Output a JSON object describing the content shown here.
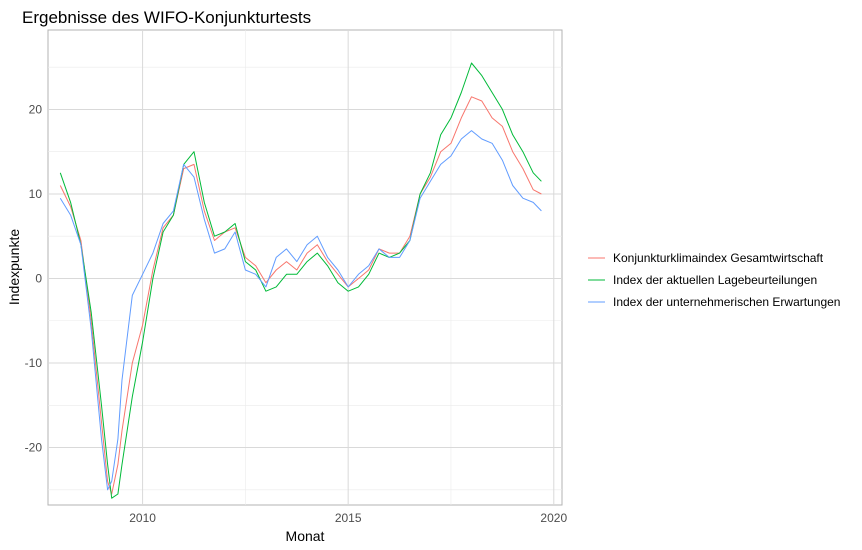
{
  "chart_data": {
    "type": "line",
    "title": "Ergebnisse des WIFO-Konjunkturtests",
    "xlabel": "Monat",
    "ylabel": "Indexpunkte",
    "xlim": [
      2007.7,
      2020.2
    ],
    "ylim": [
      -26.8,
      29.4
    ],
    "x_ticks": [
      2010,
      2015,
      2020
    ],
    "x_tick_labels": [
      "2010",
      "2015",
      "2020"
    ],
    "y_ticks": [
      -20,
      -10,
      0,
      10,
      20
    ],
    "y_tick_labels": [
      "-20",
      "-10",
      "0",
      "10",
      "20"
    ],
    "grid": true,
    "legend_position": "right",
    "x": [
      2008.0,
      2008.25,
      2008.5,
      2008.75,
      2009.0,
      2009.15,
      2009.25,
      2009.4,
      2009.5,
      2009.75,
      2010.0,
      2010.25,
      2010.5,
      2010.75,
      2011.0,
      2011.25,
      2011.5,
      2011.75,
      2012.0,
      2012.25,
      2012.5,
      2012.75,
      2013.0,
      2013.25,
      2013.5,
      2013.75,
      2014.0,
      2014.25,
      2014.5,
      2014.75,
      2015.0,
      2015.25,
      2015.5,
      2015.75,
      2016.0,
      2016.25,
      2016.5,
      2016.75,
      2017.0,
      2017.25,
      2017.5,
      2017.75,
      2018.0,
      2018.25,
      2018.5,
      2018.75,
      2019.0,
      2019.25,
      2019.5,
      2019.7
    ],
    "series": [
      {
        "name": "Konjunkturklimaindex Gesamtwirtschaft",
        "color": "#F8766D",
        "values": [
          11.0,
          8.5,
          4.5,
          -5.0,
          -17.0,
          -24.0,
          -25.5,
          -22.0,
          -18.0,
          -10.0,
          -5.5,
          1.0,
          6.0,
          7.5,
          13.0,
          13.5,
          8.0,
          4.5,
          5.5,
          6.0,
          2.5,
          1.5,
          -0.5,
          1.0,
          2.0,
          1.0,
          3.0,
          4.0,
          2.0,
          0.5,
          -1.0,
          0.0,
          1.0,
          3.5,
          3.0,
          3.0,
          5.0,
          10.0,
          12.0,
          15.0,
          16.0,
          19.0,
          21.5,
          21.0,
          19.0,
          18.0,
          15.0,
          13.0,
          10.5,
          10.0
        ]
      },
      {
        "name": "Index der aktuellen Lagebeurteilungen",
        "color": "#00BA38",
        "values": [
          12.5,
          9.0,
          4.0,
          -4.0,
          -15.0,
          -22.0,
          -26.0,
          -25.5,
          -22.0,
          -14.0,
          -7.5,
          0.0,
          5.5,
          7.5,
          13.5,
          15.0,
          9.0,
          5.0,
          5.5,
          6.5,
          2.0,
          1.0,
          -1.5,
          -1.0,
          0.5,
          0.5,
          2.0,
          3.0,
          1.5,
          -0.5,
          -1.5,
          -1.0,
          0.5,
          3.0,
          2.5,
          3.0,
          4.5,
          10.0,
          12.5,
          17.0,
          19.0,
          22.0,
          25.5,
          24.0,
          22.0,
          20.0,
          17.0,
          15.0,
          12.5,
          11.5
        ]
      },
      {
        "name": "Index der unternehmerischen Erwartungen",
        "color": "#619CFF",
        "values": [
          9.5,
          7.5,
          4.0,
          -6.0,
          -19.0,
          -25.0,
          -24.0,
          -19.0,
          -12.0,
          -2.0,
          0.5,
          3.0,
          6.5,
          8.0,
          13.5,
          12.0,
          7.0,
          3.0,
          3.5,
          5.5,
          1.0,
          0.5,
          -1.0,
          2.5,
          3.5,
          2.0,
          4.0,
          5.0,
          2.5,
          1.0,
          -1.0,
          0.5,
          1.5,
          3.5,
          2.5,
          2.5,
          4.5,
          9.5,
          11.5,
          13.5,
          14.5,
          16.5,
          17.5,
          16.5,
          16.0,
          14.0,
          11.0,
          9.5,
          9.0,
          8.0
        ]
      }
    ]
  }
}
